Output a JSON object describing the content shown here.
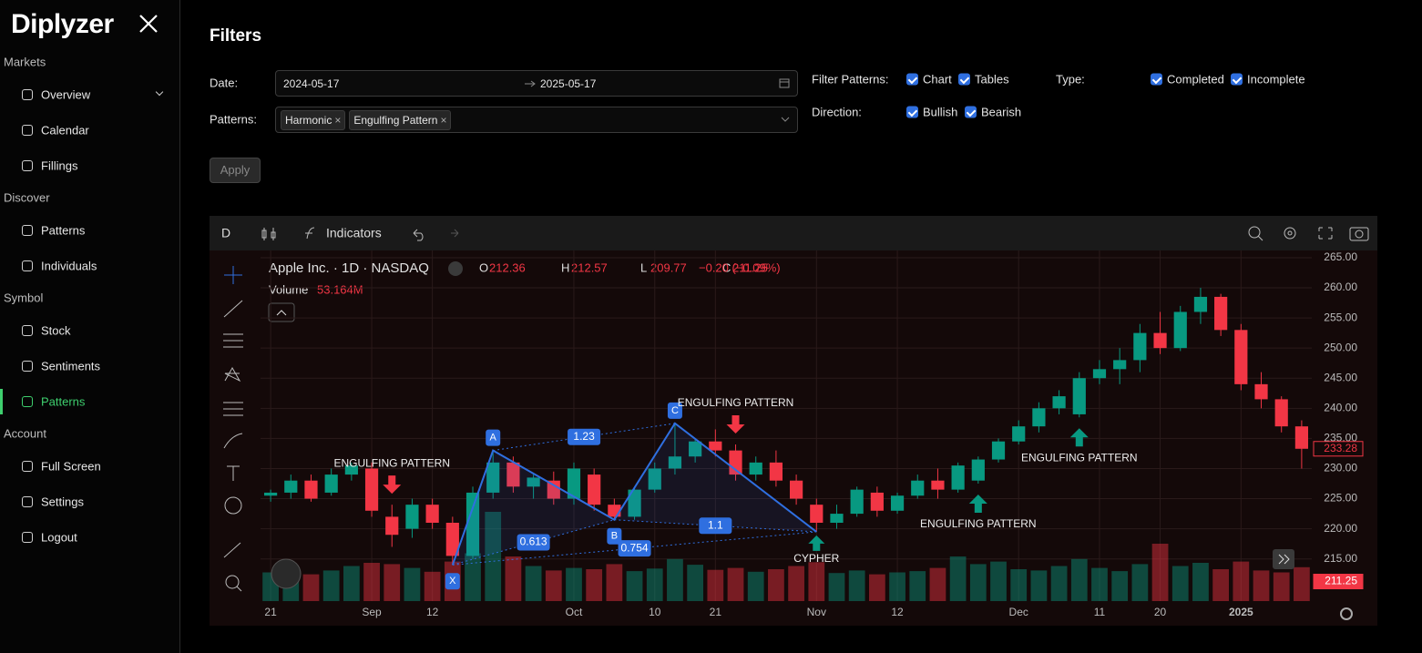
{
  "sidebar": {
    "logo": "Diplyzer",
    "sections": [
      {
        "title": "Markets",
        "items": [
          "Overview",
          "Calendar",
          "Fillings"
        ]
      },
      {
        "title": "Discover",
        "items": [
          "Patterns",
          "Individuals"
        ]
      },
      {
        "title": "Symbol",
        "items": [
          "Stock",
          "Sentiments",
          "Patterns"
        ]
      },
      {
        "title": "Account",
        "items": [
          "Full Screen",
          "Settings",
          "Logout"
        ]
      }
    ]
  },
  "filters": {
    "title": "Filters",
    "date_label": "Date:",
    "date_from": "2024-05-17",
    "date_to": "2025-05-17",
    "patterns_label": "Patterns:",
    "pattern_tags": [
      "Harmonic",
      "Engulfing Pattern"
    ],
    "filter_patterns_label": "Filter Patterns:",
    "filter_patterns": [
      "Chart",
      "Tables"
    ],
    "type_label": "Type:",
    "types": [
      "Completed",
      "Incomplete"
    ],
    "direction_label": "Direction:",
    "directions": [
      "Bullish",
      "Bearish"
    ],
    "apply": "Apply"
  },
  "toolbar": {
    "interval": "D",
    "indicators": "Indicators"
  },
  "chart_data": {
    "type": "candlestick",
    "title": "Apple Inc. · 1D · NASDAQ",
    "legend": [
      {
        "label": "O",
        "value": 212.36
      },
      {
        "label": "H",
        "value": 212.57
      },
      {
        "label": "L",
        "value": 209.77
      },
      {
        "label": "C",
        "value": 211.25
      }
    ],
    "change": "−0.20 (−0.09%)",
    "volume_label": "Volume",
    "volume_value": "53.164M",
    "up_color": "#089981",
    "down_color": "#f23645",
    "categories": [
      "21",
      null,
      null,
      null,
      null,
      "Sep",
      null,
      null,
      "12",
      null,
      null,
      null,
      null,
      null,
      null,
      "Oct",
      null,
      null,
      null,
      "10",
      null,
      null,
      "21",
      null,
      null,
      null,
      null,
      "Nov",
      null,
      null,
      null,
      "12",
      null,
      null,
      null,
      null,
      null,
      "Dec",
      null,
      null,
      null,
      "11",
      null,
      null,
      "20",
      null,
      null,
      null,
      "2025",
      null,
      null,
      null
    ],
    "open": [
      225.5,
      226,
      228,
      226,
      229,
      230,
      222,
      220,
      224,
      221,
      215.5,
      226,
      231,
      227,
      228,
      225,
      229,
      224,
      222,
      226.5,
      230,
      232,
      234.5,
      233,
      229,
      231,
      228,
      224,
      221,
      222.5,
      226,
      223,
      225.5,
      228,
      226.5,
      228,
      231.5,
      234.5,
      237,
      240,
      239,
      245,
      246.5,
      248,
      252.5,
      250,
      256,
      258.5,
      253,
      244,
      241.5,
      237
    ],
    "high": [
      226.5,
      229,
      229,
      230,
      231,
      231,
      224,
      225,
      225,
      222,
      227,
      233,
      232,
      229,
      229.5,
      231,
      230,
      225,
      227,
      231,
      237.5,
      235,
      236.5,
      234,
      232,
      233,
      229,
      225,
      224,
      227,
      227,
      226,
      229,
      230,
      231,
      232,
      235,
      238,
      241,
      243,
      246,
      248,
      250,
      254,
      256,
      257,
      260,
      259,
      254,
      246,
      242,
      238
    ],
    "low": [
      224.5,
      225,
      224.5,
      225.5,
      228,
      222,
      217,
      218.5,
      220,
      214,
      215,
      225,
      226,
      225,
      224,
      224,
      223,
      221.5,
      221.5,
      226,
      229,
      231,
      232,
      228,
      228,
      227,
      224,
      219.5,
      220,
      222,
      222,
      222.5,
      225,
      225,
      226,
      227.5,
      231,
      234,
      236,
      239,
      238.5,
      244,
      244,
      246,
      249,
      249.5,
      254,
      252,
      243,
      240,
      236,
      230
    ],
    "close": [
      226,
      228,
      225,
      229,
      230.5,
      223,
      219,
      224,
      221,
      215.5,
      226,
      231,
      227,
      228.5,
      225,
      230,
      224,
      222,
      226.5,
      230,
      232,
      234.5,
      233,
      229,
      231,
      228,
      225,
      221,
      222.5,
      226.5,
      223,
      225.5,
      228,
      226.5,
      230.5,
      231.5,
      234.5,
      237,
      240,
      242,
      245,
      246.5,
      248,
      252.5,
      250,
      256,
      258.5,
      253,
      244,
      241.5,
      237,
      233.28
    ],
    "volume": [
      45,
      50,
      42,
      48,
      55,
      60,
      58,
      52,
      46,
      62,
      75,
      140,
      70,
      55,
      48,
      52,
      50,
      58,
      47,
      51,
      66,
      57,
      49,
      52,
      46,
      50,
      55,
      61,
      44,
      48,
      42,
      45,
      47,
      52,
      70,
      58,
      62,
      50,
      48,
      55,
      66,
      52,
      47,
      58,
      90,
      55,
      60,
      50,
      62,
      48,
      45,
      53.164
    ],
    "ylim": [
      208,
      266.2
    ],
    "yticks": [
      {
        "value": 215,
        "label": "215.00"
      },
      {
        "value": 220,
        "label": "220.00"
      },
      {
        "value": 225,
        "label": "225.00"
      },
      {
        "value": 230,
        "label": "230.00"
      },
      {
        "value": 235,
        "label": "235.00"
      },
      {
        "value": 240,
        "label": "240.00"
      },
      {
        "value": 245,
        "label": "245.00"
      },
      {
        "value": 250,
        "label": "250.00"
      },
      {
        "value": 255,
        "label": "255.00"
      },
      {
        "value": 260,
        "label": "260.00"
      },
      {
        "value": 265,
        "label": "265.00"
      }
    ],
    "grid": true,
    "price_tags": [
      {
        "value": 233.28,
        "style": "outline"
      },
      {
        "value": 211.25,
        "style": "filled"
      }
    ],
    "annotations": [
      {
        "label": "ENGULFING PATTERN",
        "index": 6,
        "direction": "bearish"
      },
      {
        "label": "ENGULFING PATTERN",
        "index": 23,
        "direction": "bearish"
      },
      {
        "label": "ENGULFING PATTERN",
        "index": 35,
        "direction": "bullish"
      },
      {
        "label": "ENGULFING PATTERN",
        "index": 40,
        "direction": "bullish"
      }
    ],
    "harmonic": {
      "name": "CYPHER",
      "color": "#2f6fe0",
      "points": [
        {
          "label": "X",
          "index": 9,
          "price": 214
        },
        {
          "label": "A",
          "index": 11,
          "price": 233
        },
        {
          "label": "B",
          "index": 17,
          "price": 221.5
        },
        {
          "label": "C",
          "index": 20,
          "price": 237.5
        },
        {
          "index": 27,
          "price": 219.5
        }
      ],
      "ratios": [
        {
          "value": 0.613,
          "from": 0,
          "to": 2
        },
        {
          "value": 1.23,
          "from": 1,
          "to": 3
        },
        {
          "value": 0.754,
          "from": 0,
          "to": 4
        },
        {
          "value": 1.1,
          "from": 2,
          "to": 4
        }
      ]
    }
  }
}
